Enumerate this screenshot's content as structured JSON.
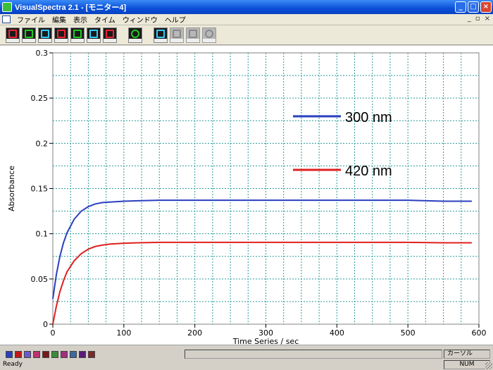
{
  "window": {
    "title": "VisualSpectra 2.1 - [モニター4]"
  },
  "menu": {
    "items": [
      "ファイル",
      "編集",
      "表示",
      "タイム",
      "ウィンドウ",
      "ヘルプ"
    ]
  },
  "toolbar": {
    "buttons": [
      {
        "icon": "scale-x-icon",
        "enabled": true
      },
      {
        "icon": "scale-y-icon",
        "enabled": true
      },
      {
        "icon": "scale-xy-icon",
        "enabled": true
      },
      {
        "icon": "graph-icon",
        "enabled": true
      },
      {
        "icon": "zoom-icon",
        "enabled": true
      },
      {
        "icon": "zoom-xy-icon",
        "enabled": true
      },
      {
        "icon": "pan-icon",
        "enabled": true
      },
      {
        "icon": "measure-icon",
        "enabled": true
      },
      {
        "icon": "start-icon",
        "enabled": true
      },
      {
        "icon": "pause-icon",
        "enabled": false
      },
      {
        "icon": "stop-icon",
        "enabled": false
      },
      {
        "icon": "settings-icon",
        "enabled": false
      }
    ]
  },
  "chart_data": {
    "type": "line",
    "ylabel": "Absorbance",
    "xlabel": "Time Series / sec",
    "xlim": [
      0,
      600
    ],
    "ylim": [
      0,
      0.3
    ],
    "xticks": [
      0,
      100,
      200,
      300,
      400,
      500,
      600
    ],
    "yticks": [
      0,
      0.05,
      0.1,
      0.15,
      0.2,
      0.25,
      0.3
    ],
    "ytick_labels": [
      "0",
      "0.05",
      "0.1",
      "0.15",
      "0.2",
      "0.25",
      "0.3"
    ],
    "grid": true,
    "legend_position": "top-right",
    "series": [
      {
        "name": "300 nm",
        "color": "#2a3fbf",
        "x": [
          0,
          5,
          10,
          15,
          20,
          30,
          40,
          50,
          60,
          70,
          80,
          90,
          100,
          120,
          150,
          200,
          250,
          300,
          350,
          400,
          450,
          500,
          550,
          590
        ],
        "y": [
          0.028,
          0.055,
          0.075,
          0.09,
          0.101,
          0.116,
          0.125,
          0.13,
          0.133,
          0.1345,
          0.135,
          0.1355,
          0.136,
          0.1365,
          0.137,
          0.137,
          0.137,
          0.137,
          0.137,
          0.137,
          0.137,
          0.137,
          0.136,
          0.136
        ]
      },
      {
        "name": "420 nm",
        "color": "#e02020",
        "x": [
          0,
          5,
          10,
          15,
          20,
          30,
          40,
          50,
          60,
          70,
          80,
          90,
          100,
          120,
          150,
          200,
          250,
          300,
          350,
          400,
          450,
          500,
          550,
          590
        ],
        "y": [
          0.0,
          0.02,
          0.036,
          0.048,
          0.058,
          0.07,
          0.078,
          0.083,
          0.086,
          0.0875,
          0.0885,
          0.089,
          0.0895,
          0.09,
          0.0905,
          0.0905,
          0.0905,
          0.0905,
          0.0905,
          0.0905,
          0.0905,
          0.0905,
          0.09,
          0.09
        ]
      }
    ]
  },
  "swatch_colors": [
    "#2a3fbf",
    "#c01818",
    "#6a5acd",
    "#c03070",
    "#7a1a1a",
    "#3a8a3a",
    "#a03080",
    "#3a6aa0",
    "#5a1a7a",
    "#7a2a2a"
  ],
  "status": {
    "ready": "Ready",
    "cursor_label": "カーソル",
    "num": "NUM"
  }
}
